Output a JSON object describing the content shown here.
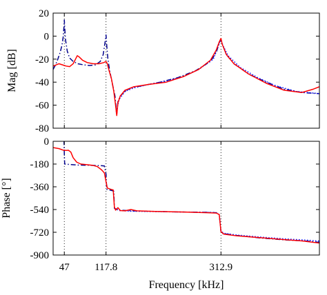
{
  "chart_data": [
    {
      "type": "line",
      "ylabel": "Mag [dB]",
      "xlabel": "",
      "x_ticks": [
        47,
        117.8,
        312.9
      ],
      "x_tick_labels": [
        "",
        "",
        ""
      ],
      "ylim": [
        -80,
        20
      ],
      "y_ticks": [
        20,
        0,
        -20,
        -40,
        -60,
        -80
      ],
      "y_tick_labels": [
        "20",
        "0",
        "-20",
        "-40",
        "-60",
        "-80"
      ],
      "vlines": [
        47,
        117.8,
        312.9
      ],
      "grid": false,
      "series": [
        {
          "style": "dashdot",
          "color": "#00008b",
          "points": [
            [
              28,
              -29
            ],
            [
              32,
              -25
            ],
            [
              36,
              -20
            ],
            [
              40,
              -14
            ],
            [
              43,
              -8
            ],
            [
              45,
              -1
            ],
            [
              46.4,
              8
            ],
            [
              47,
              14
            ],
            [
              47.6,
              8
            ],
            [
              49,
              -3
            ],
            [
              52,
              -13
            ],
            [
              56,
              -19
            ],
            [
              62,
              -22
            ],
            [
              70,
              -24
            ],
            [
              80,
              -25
            ],
            [
              90,
              -25.5
            ],
            [
              100,
              -25
            ],
            [
              108,
              -22
            ],
            [
              113,
              -16
            ],
            [
              116,
              -6
            ],
            [
              117.8,
              1
            ],
            [
              119,
              -8
            ],
            [
              121,
              -20
            ],
            [
              124,
              -30
            ],
            [
              128,
              -40
            ],
            [
              133,
              -52
            ],
            [
              136,
              -68
            ],
            [
              138,
              -57
            ],
            [
              142,
              -52
            ],
            [
              150,
              -48
            ],
            [
              160,
              -45
            ],
            [
              180,
              -43
            ],
            [
              210,
              -40
            ],
            [
              240,
              -36
            ],
            [
              270,
              -30
            ],
            [
              295,
              -22
            ],
            [
              305,
              -14
            ],
            [
              310,
              -6
            ],
            [
              312.9,
              -3
            ],
            [
              316,
              -8
            ],
            [
              322,
              -16
            ],
            [
              335,
              -24
            ],
            [
              360,
              -33
            ],
            [
              390,
              -40
            ],
            [
              420,
              -46
            ],
            [
              450,
              -49
            ],
            [
              480,
              -50
            ]
          ]
        },
        {
          "style": "dotted",
          "color": "#0000ff",
          "points": [
            [
              135,
              -66
            ],
            [
              140,
              -55
            ],
            [
              150,
              -48
            ],
            [
              165,
              -45
            ],
            [
              190,
              -42
            ],
            [
              220,
              -39
            ],
            [
              250,
              -35
            ],
            [
              275,
              -29
            ],
            [
              300,
              -20
            ],
            [
              310,
              -6
            ],
            [
              312.9,
              -3
            ],
            [
              316,
              -8
            ],
            [
              325,
              -17
            ],
            [
              345,
              -27
            ],
            [
              375,
              -36
            ],
            [
              405,
              -43
            ],
            [
              440,
              -48
            ],
            [
              480,
              -50
            ]
          ]
        },
        {
          "style": "solid",
          "color": "#ff0000",
          "points": [
            [
              28,
              -26
            ],
            [
              33,
              -25
            ],
            [
              38,
              -24
            ],
            [
              44,
              -25
            ],
            [
              50,
              -26
            ],
            [
              56,
              -26.5
            ],
            [
              62,
              -24
            ],
            [
              66,
              -20
            ],
            [
              69,
              -17
            ],
            [
              72,
              -18
            ],
            [
              78,
              -21
            ],
            [
              86,
              -23
            ],
            [
              96,
              -24
            ],
            [
              106,
              -24
            ],
            [
              114,
              -23
            ],
            [
              117.8,
              -22
            ],
            [
              120,
              -24
            ],
            [
              123,
              -30
            ],
            [
              127,
              -37
            ],
            [
              131,
              -48
            ],
            [
              134,
              -60
            ],
            [
              136,
              -69
            ],
            [
              138,
              -58
            ],
            [
              142,
              -52
            ],
            [
              150,
              -47
            ],
            [
              165,
              -44
            ],
            [
              190,
              -42
            ],
            [
              220,
              -40
            ],
            [
              250,
              -35
            ],
            [
              275,
              -29
            ],
            [
              295,
              -21
            ],
            [
              305,
              -12
            ],
            [
              310,
              -5
            ],
            [
              312.9,
              -2
            ],
            [
              315,
              -7
            ],
            [
              322,
              -16
            ],
            [
              335,
              -24
            ],
            [
              360,
              -33
            ],
            [
              390,
              -41
            ],
            [
              420,
              -47
            ],
            [
              450,
              -49
            ],
            [
              470,
              -46
            ],
            [
              480,
              -44
            ]
          ]
        }
      ]
    },
    {
      "type": "line",
      "ylabel": "Phase [°]",
      "xlabel": "Frequency [kHz]",
      "x_ticks": [
        47,
        117.8,
        312.9
      ],
      "x_tick_labels": [
        "47",
        "117.8",
        "312.9"
      ],
      "ylim": [
        -900,
        0
      ],
      "y_ticks": [
        0,
        -180,
        -360,
        -540,
        -720,
        -900
      ],
      "y_tick_labels": [
        "0",
        "-180",
        "-360",
        "-540",
        "-720",
        "-900"
      ],
      "vlines": [
        47,
        117.8,
        312.9
      ],
      "grid": false,
      "series": [
        {
          "style": "dashdot",
          "color": "#00008b",
          "points": [
            [
              28,
              5
            ],
            [
              40,
              5
            ],
            [
              45,
              4
            ],
            [
              46.5,
              0
            ],
            [
              47,
              -100
            ],
            [
              47.6,
              -180
            ],
            [
              55,
              -183
            ],
            [
              70,
              -188
            ],
            [
              90,
              -190
            ],
            [
              110,
              -193
            ],
            [
              115,
              -195
            ],
            [
              117.8,
              -260
            ],
            [
              119,
              -380
            ],
            [
              128,
              -390
            ],
            [
              131,
              -395
            ],
            [
              132,
              -530
            ],
            [
              140,
              -545
            ],
            [
              160,
              -550
            ],
            [
              200,
              -555
            ],
            [
              250,
              -560
            ],
            [
              290,
              -562
            ],
            [
              305,
              -565
            ],
            [
              310,
              -580
            ],
            [
              312.9,
              -715
            ],
            [
              316,
              -730
            ],
            [
              340,
              -745
            ],
            [
              380,
              -765
            ],
            [
              420,
              -780
            ],
            [
              460,
              -790
            ],
            [
              480,
              -800
            ]
          ]
        },
        {
          "style": "dotted",
          "color": "#0000ff",
          "points": [
            [
              132,
              -530
            ],
            [
              140,
              -548
            ],
            [
              160,
              -553
            ],
            [
              200,
              -556
            ],
            [
              250,
              -560
            ],
            [
              290,
              -562
            ],
            [
              305,
              -565
            ],
            [
              310,
              -580
            ],
            [
              312.9,
              -712
            ],
            [
              318,
              -728
            ],
            [
              340,
              -742
            ],
            [
              380,
              -758
            ],
            [
              420,
              -772
            ],
            [
              460,
              -783
            ],
            [
              480,
              -790
            ]
          ]
        },
        {
          "style": "solid",
          "color": "#ff0000",
          "points": [
            [
              28,
              -50
            ],
            [
              38,
              -58
            ],
            [
              45,
              -70
            ],
            [
              50,
              -72
            ],
            [
              54,
              -71
            ],
            [
              58,
              -85
            ],
            [
              62,
              -130
            ],
            [
              68,
              -165
            ],
            [
              75,
              -180
            ],
            [
              85,
              -185
            ],
            [
              95,
              -190
            ],
            [
              103,
              -200
            ],
            [
              110,
              -225
            ],
            [
              115,
              -250
            ],
            [
              117.8,
              -320
            ],
            [
              120,
              -370
            ],
            [
              126,
              -380
            ],
            [
              130,
              -385
            ],
            [
              132,
              -520
            ],
            [
              134,
              -545
            ],
            [
              138,
              -525
            ],
            [
              142,
              -548
            ],
            [
              150,
              -550
            ],
            [
              160,
              -540
            ],
            [
              170,
              -550
            ],
            [
              200,
              -555
            ],
            [
              250,
              -560
            ],
            [
              290,
              -565
            ],
            [
              305,
              -568
            ],
            [
              310,
              -580
            ],
            [
              312.9,
              -715
            ],
            [
              318,
              -735
            ],
            [
              340,
              -748
            ],
            [
              380,
              -763
            ],
            [
              420,
              -778
            ],
            [
              450,
              -788
            ],
            [
              480,
              -805
            ]
          ]
        }
      ]
    }
  ]
}
